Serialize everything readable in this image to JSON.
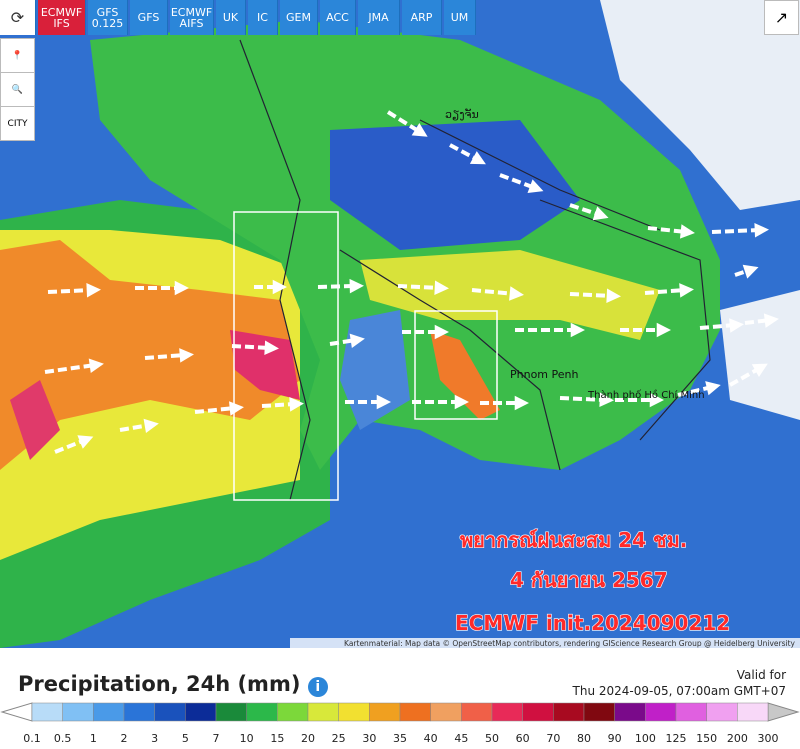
{
  "toolbar": {
    "models": [
      "ECMWF IFS",
      "GFS 0.125",
      "GFS",
      "ECMWF AIFS",
      "UK",
      "IC",
      "GEM",
      "ACC",
      "JMA",
      "ARP",
      "UM"
    ],
    "active": 0
  },
  "sidebar": {
    "city": "CITY"
  },
  "map": {
    "labels": [
      "ວຽງຈັນ",
      "Phnom Penh",
      "Thành phố Hồ Chí Minh"
    ],
    "attribution": "Kartenmaterial: Map data © OpenStreetMap contributors, rendering GIScience Research Group @ Heidelberg University"
  },
  "overlay": {
    "title": "พยากรณ์ฝนสะสม 24 ชม.",
    "date": "4 กันยายน 2567",
    "init": "ECMWF init.2024090212"
  },
  "legend": {
    "title": "Precipitation, 24h (mm)",
    "valid_label": "Valid for",
    "valid_time": "Thu 2024-09-05, 07:00am GMT+07",
    "ticks": [
      0.1,
      0.5,
      1,
      2,
      3,
      5,
      7,
      10,
      15,
      20,
      25,
      30,
      35,
      40,
      45,
      50,
      60,
      70,
      80,
      90,
      100,
      125,
      150,
      200,
      300
    ],
    "colors": [
      "#ffffff",
      "#b8dcf8",
      "#80c0f4",
      "#4a9ae8",
      "#2a74d8",
      "#1a52bc",
      "#0c2c98",
      "#1a8a3a",
      "#2cb84a",
      "#7cd83a",
      "#d8e83a",
      "#f2e030",
      "#f0a020",
      "#ee7020",
      "#f0a060",
      "#f06048",
      "#e82a58",
      "#d01040",
      "#a80a20",
      "#800810",
      "#7a0a8a",
      "#c020c8",
      "#e060e0",
      "#f0a0f0",
      "#f8d8f8",
      "#c8c8c8"
    ]
  }
}
